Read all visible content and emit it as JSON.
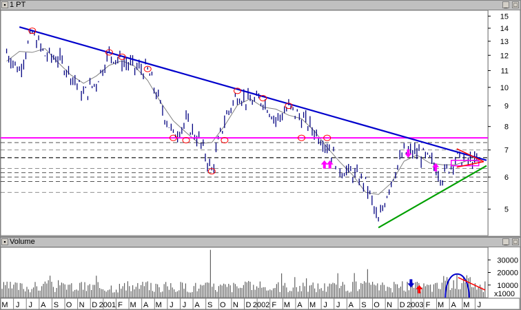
{
  "price_pane": {
    "title": "1 PT",
    "y_ticks": [
      "15",
      "14",
      "13",
      "12",
      "11",
      "10",
      "9",
      "8",
      "7",
      "6",
      "5"
    ],
    "colors": {
      "trendline": "#0000cc",
      "support": "#00a000",
      "resistance": "#ff00ff",
      "bars": "#000080",
      "ma": "#808080",
      "dash": "#000000",
      "triangle": "#ff0000"
    }
  },
  "volume_pane": {
    "title": "Volume",
    "y_ticks": [
      "30000",
      "20000",
      "10000"
    ],
    "unit": "x1000"
  },
  "x_axis": {
    "labels": [
      "M",
      "J",
      "J",
      "A",
      "S",
      "O",
      "N",
      "D",
      "2001",
      "F",
      "M",
      "A",
      "M",
      "J",
      "J",
      "A",
      "S",
      "O",
      "N",
      "D",
      "2002",
      "F",
      "M",
      "A",
      "M",
      "J",
      "J",
      "A",
      "S",
      "O",
      "N",
      "D",
      "2003",
      "F",
      "M",
      "A",
      "M",
      "J"
    ]
  },
  "chart_data": {
    "type": "line",
    "y_scale": "log",
    "ylim": [
      4.3,
      15.5
    ],
    "price_series_approx": [
      {
        "date": "2000-05",
        "value": 12.2
      },
      {
        "date": "2000-06",
        "value": 11.0
      },
      {
        "date": "2000-07",
        "value": 13.6
      },
      {
        "date": "2000-08",
        "value": 12.0
      },
      {
        "date": "2000-09",
        "value": 11.8
      },
      {
        "date": "2000-10",
        "value": 10.8
      },
      {
        "date": "2000-11",
        "value": 9.6
      },
      {
        "date": "2000-12",
        "value": 10.3
      },
      {
        "date": "2001-01",
        "value": 12.1
      },
      {
        "date": "2001-02",
        "value": 11.6
      },
      {
        "date": "2001-03",
        "value": 11.2
      },
      {
        "date": "2001-04",
        "value": 11.0
      },
      {
        "date": "2001-05",
        "value": 9.0
      },
      {
        "date": "2001-06",
        "value": 7.6
      },
      {
        "date": "2001-07",
        "value": 8.2
      },
      {
        "date": "2001-08",
        "value": 7.4
      },
      {
        "date": "2001-09",
        "value": 6.2
      },
      {
        "date": "2001-10",
        "value": 8.3
      },
      {
        "date": "2001-11",
        "value": 9.6
      },
      {
        "date": "2001-12",
        "value": 9.2
      },
      {
        "date": "2002-01",
        "value": 9.3
      },
      {
        "date": "2002-02",
        "value": 8.3
      },
      {
        "date": "2002-03",
        "value": 8.9
      },
      {
        "date": "2002-04",
        "value": 8.4
      },
      {
        "date": "2002-05",
        "value": 7.8
      },
      {
        "date": "2002-06",
        "value": 7.2
      },
      {
        "date": "2002-07",
        "value": 6.3
      },
      {
        "date": "2002-08",
        "value": 6.1
      },
      {
        "date": "2002-09",
        "value": 5.8
      },
      {
        "date": "2002-10",
        "value": 4.6
      },
      {
        "date": "2002-11",
        "value": 5.9
      },
      {
        "date": "2002-12",
        "value": 6.9
      },
      {
        "date": "2003-01",
        "value": 6.9
      },
      {
        "date": "2003-02",
        "value": 6.6
      },
      {
        "date": "2003-03",
        "value": 6.0
      },
      {
        "date": "2003-04",
        "value": 6.7
      },
      {
        "date": "2003-05",
        "value": 6.6
      },
      {
        "date": "2003-06",
        "value": 6.5
      }
    ],
    "resistance_level": 7.5,
    "downtrend_line": [
      {
        "date": "2000-06",
        "value": 14.1
      },
      {
        "date": "2003-06",
        "value": 6.6
      }
    ],
    "uptrend_line": [
      {
        "date": "2002-10",
        "value": 4.5
      },
      {
        "date": "2003-06",
        "value": 6.4
      }
    ]
  }
}
